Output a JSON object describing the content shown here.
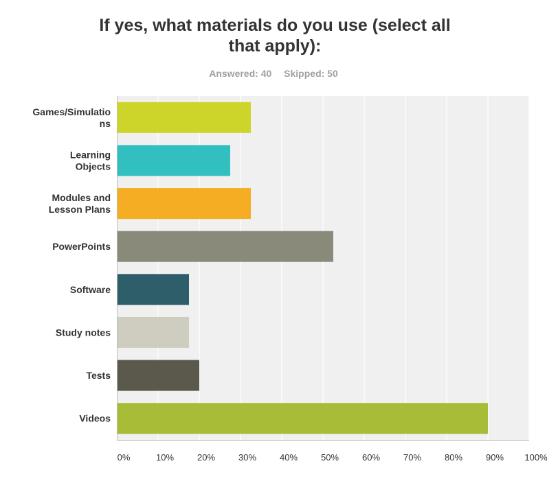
{
  "header": {
    "title_line1": "If yes, what materials do you use (select all",
    "title_line2": "that apply):",
    "answered": "Answered: 40",
    "skipped": "Skipped: 50"
  },
  "chart_data": {
    "type": "bar",
    "orientation": "horizontal",
    "title": "If yes, what materials do you use (select all that apply):",
    "categories": [
      [
        "Games/Simulatio",
        "ns"
      ],
      [
        "Learning",
        "Objects"
      ],
      [
        "Modules and",
        "Lesson Plans"
      ],
      [
        "PowerPoints"
      ],
      [
        "Software"
      ],
      [
        "Study notes"
      ],
      [
        "Tests"
      ],
      [
        "Videos"
      ]
    ],
    "values": [
      32.5,
      27.5,
      32.5,
      52.5,
      17.5,
      17.5,
      20,
      90
    ],
    "colors": [
      "#cdd52a",
      "#32bfc0",
      "#f5ae23",
      "#8a8a7a",
      "#2e5e6a",
      "#cfcdc0",
      "#5b594b",
      "#a8bc37"
    ],
    "xlim": [
      0,
      100
    ],
    "xticks": [
      "0%",
      "10%",
      "20%",
      "30%",
      "40%",
      "50%",
      "60%",
      "70%",
      "80%",
      "90%",
      "100%"
    ],
    "grid": true
  }
}
